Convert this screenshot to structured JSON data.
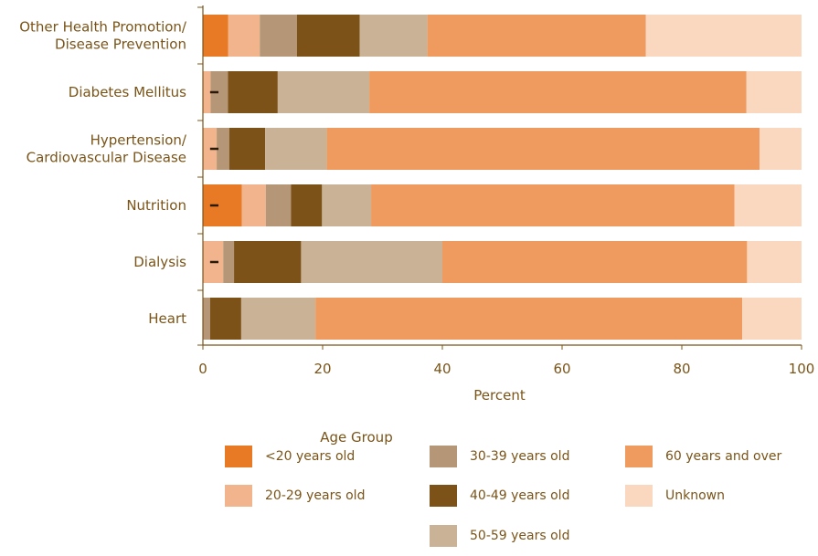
{
  "chart_data": {
    "type": "bar",
    "orientation": "horizontal",
    "stacked": true,
    "categories": [
      "Other Health Promotion/\nDisease Prevention",
      "Diabetes Mellitus",
      "Hypertension/\nCardiovascular Disease",
      "Nutrition",
      "Dialysis",
      "Heart"
    ],
    "series": [
      {
        "name": "<20 years old",
        "color": "#e87a25",
        "values": [
          4.2,
          0,
          0,
          6.5,
          0,
          0
        ]
      },
      {
        "name": "20-29 years old",
        "color": "#f2b48c",
        "values": [
          5.3,
          1.3,
          2.3,
          4.0,
          3.4,
          0
        ]
      },
      {
        "name": "30-39 years old",
        "color": "#b59676",
        "values": [
          6.2,
          2.9,
          2.1,
          4.2,
          1.8,
          1.2
        ]
      },
      {
        "name": "40-49 years old",
        "color": "#7d5219",
        "values": [
          10.5,
          8.3,
          6.0,
          5.2,
          11.2,
          5.2
        ]
      },
      {
        "name": "50-59 years old",
        "color": "#c9b296",
        "values": [
          11.3,
          15.3,
          10.3,
          8.2,
          23.6,
          12.4
        ]
      },
      {
        "name": "60 years and over",
        "color": "#ef9a5e",
        "values": [
          36.5,
          63.0,
          72.3,
          60.7,
          50.9,
          71.3
        ]
      },
      {
        "name": "Unknown",
        "color": "#fad8c0",
        "values": [
          26.0,
          9.2,
          7.0,
          11.2,
          9.1,
          9.9
        ]
      }
    ],
    "xlabel": "Percent",
    "xlim": [
      0,
      100
    ],
    "xticks": [
      "0",
      "20",
      "40",
      "60",
      "80",
      "100"
    ],
    "legend_title": "Age Group",
    "grid": false,
    "legend_position": "bottom",
    "markers": {
      "note": "short dash marks",
      "rows": [
        1,
        2,
        3,
        4
      ]
    }
  }
}
